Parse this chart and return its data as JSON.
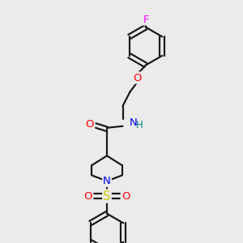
{
  "background_color": "#ebebeb",
  "bond_color": "#1a1a1a",
  "bond_width": 1.6,
  "atom_colors": {
    "O": "#ff0000",
    "N": "#0000ee",
    "S": "#cccc00",
    "F": "#ff00ff",
    "H": "#008080",
    "C": "#1a1a1a"
  },
  "font_size": 8.5,
  "figsize": [
    3.0,
    3.0
  ],
  "dpi": 100
}
